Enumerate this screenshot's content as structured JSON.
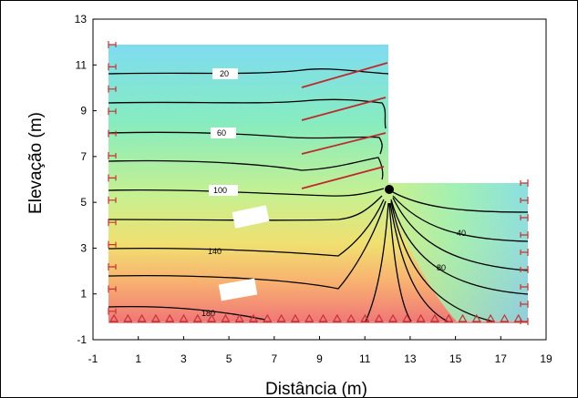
{
  "figure": {
    "xlabel": "Distância (m)",
    "ylabel": "Elevação (m)",
    "x_ticks": [
      "-1",
      "1",
      "3",
      "5",
      "7",
      "9",
      "11",
      "13",
      "15",
      "17",
      "19"
    ],
    "y_ticks": [
      "-1",
      "1",
      "3",
      "5",
      "7",
      "9",
      "11",
      "13"
    ],
    "contour_labels": [
      "20",
      "60",
      "100",
      "140",
      "180",
      "40",
      "80"
    ]
  },
  "colors": {
    "boundary": "#c83232",
    "nail": "#c0282c",
    "contour": "#000000",
    "gradient_top": "#7fdcf0",
    "gradient_mid": "#c8f090",
    "gradient_bottom": "#f08080"
  }
}
